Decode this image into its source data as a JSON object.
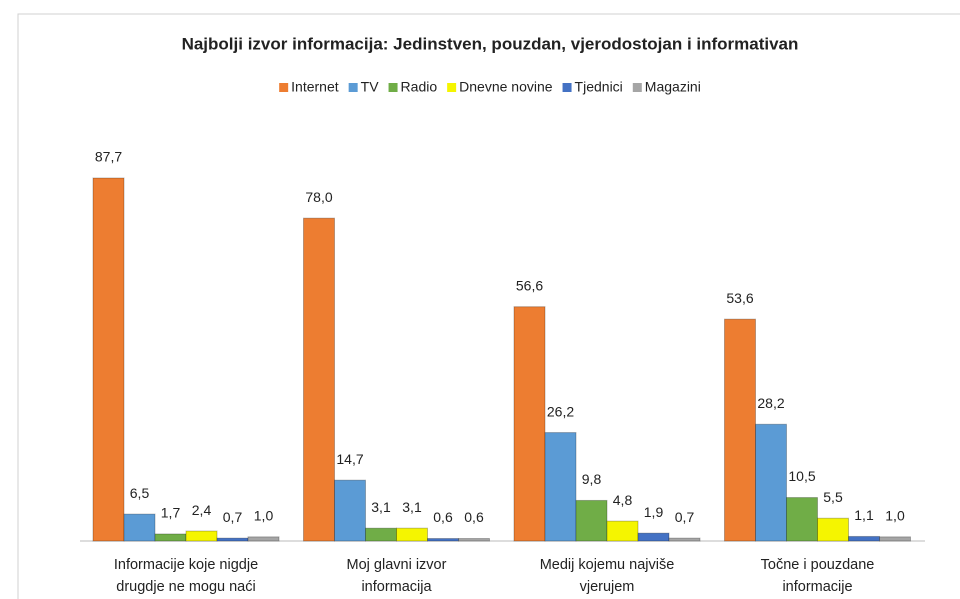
{
  "chart_data": {
    "type": "bar",
    "title": "Najbolji izvor informacija: Jedinstven, pouzdan, vjerodostojan i informativan",
    "categories": [
      [
        "Informacije koje nigdje",
        "drugdje ne mogu naći"
      ],
      [
        "Moj glavni izvor",
        "informacija"
      ],
      [
        "Medij kojemu najviše",
        "vjerujem"
      ],
      [
        "Točne i pouzdane",
        "informacije"
      ]
    ],
    "series": [
      {
        "name": "Internet",
        "color": "#ed7d31",
        "values": [
          87.7,
          78.0,
          56.6,
          53.6
        ],
        "value_labels": [
          "87,7",
          "78,0",
          "56,6",
          "53,6"
        ]
      },
      {
        "name": "TV",
        "color": "#5b9bd5",
        "values": [
          6.5,
          14.7,
          26.2,
          28.2
        ],
        "value_labels": [
          "6,5",
          "14,7",
          "26,2",
          "28,2"
        ]
      },
      {
        "name": "Radio",
        "color": "#70ad47",
        "values": [
          1.7,
          3.1,
          9.8,
          10.5
        ],
        "value_labels": [
          "1,7",
          "3,1",
          "9,8",
          "10,5"
        ]
      },
      {
        "name": "Dnevne novine",
        "color": "#f5f500",
        "values": [
          2.4,
          3.1,
          4.8,
          5.5
        ],
        "value_labels": [
          "2,4",
          "3,1",
          "4,8",
          "5,5"
        ]
      },
      {
        "name": "Tjednici",
        "color": "#4472c4",
        "values": [
          0.7,
          0.6,
          1.9,
          1.1
        ],
        "value_labels": [
          "0,7",
          "0,6",
          "1,9",
          "1,1"
        ]
      },
      {
        "name": "Magazini",
        "color": "#a5a5a5",
        "values": [
          1.0,
          0.6,
          0.7,
          1.0
        ],
        "value_labels": [
          "1,0",
          "0,6",
          "0,7",
          "1,0"
        ]
      }
    ],
    "legend": "top"
  }
}
